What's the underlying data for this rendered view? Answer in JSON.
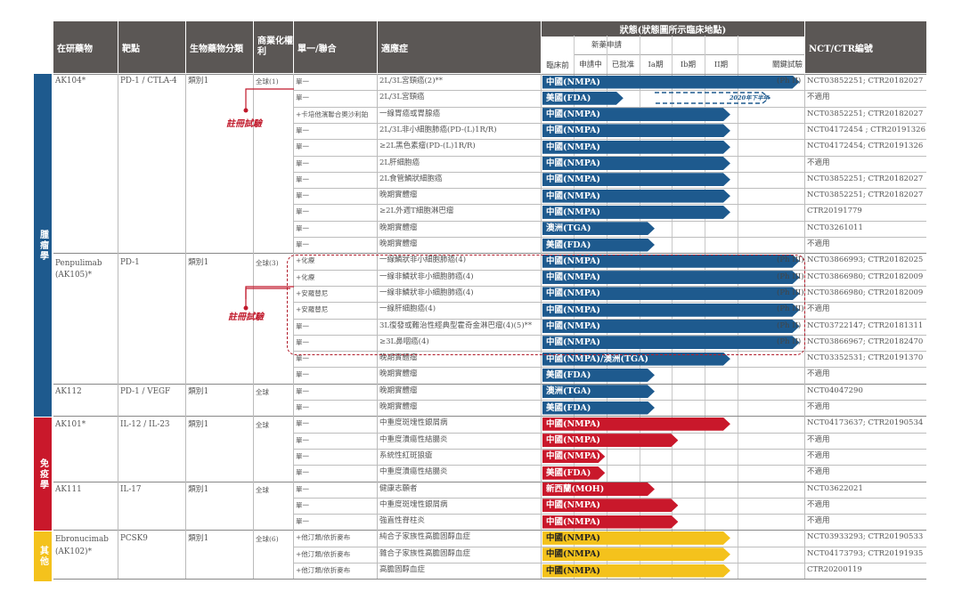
{
  "headers": {
    "drug": "在研藥物",
    "target": "靶點",
    "class": "生物藥物分類",
    "rights": "商業化權利",
    "combo": "單一/聯合",
    "indication": "適應症",
    "status": "狀態(狀態圖所示臨床地點)",
    "nct": "NCT/CTR編號",
    "preclinical": "臨床前",
    "ind": "新藥申請",
    "ind_filing": "申請中",
    "ind_approved": "已批准",
    "phase_ia": "Ia期",
    "phase_ib": "Ib期",
    "phase_ii": "II期",
    "pivotal": "關鍵試驗"
  },
  "categories": [
    {
      "label": "腫瘤學",
      "color": "#1e5a8e"
    },
    {
      "label": "免疫學",
      "color": "#c9182b"
    },
    {
      "label": "其他",
      "color": "#f4c21c"
    }
  ],
  "annotations": {
    "registration": "註冊試驗",
    "h2_2020": "2020年下半年"
  },
  "drugs": [
    {
      "name": "AK104*",
      "target": "PD-1 / CTLA-4",
      "class": "類別1",
      "rights": "全球(1)"
    },
    {
      "name": "Penpulimab (AK105)*",
      "target": "PD-1",
      "class": "類別1",
      "rights": "全球(3)"
    },
    {
      "name": "AK112",
      "target": "PD-1 / VEGF",
      "class": "類別1",
      "rights": "全球"
    },
    {
      "name": "AK101*",
      "target": "IL-12 / IL-23",
      "class": "類別1",
      "rights": "全球"
    },
    {
      "name": "AK111",
      "target": "IL-17",
      "class": "類別1",
      "rights": "全球"
    },
    {
      "name": "Ebronucimab (AK102)*",
      "target": "PCSK9",
      "class": "類別1",
      "rights": "全球(6)"
    }
  ],
  "rows": [
    {
      "combo": "單一",
      "indication": "2L/3L宮頸癌(2)**",
      "bar": "中國(NMPA)",
      "color": "blue",
      "end": 0.985,
      "phase": "(Ph II)",
      "nct": "NCT03852251; CTR20182027"
    },
    {
      "combo": "單一",
      "indication": "2L/3L宮頸癌",
      "bar": "美國(FDA)",
      "color": "blue",
      "end": 0.31,
      "phase": "",
      "nct": "不適用"
    },
    {
      "combo": "+卡培他濱聯合奧沙利鉑",
      "indication": "一線胃癌或胃腺癌",
      "bar": "中國(NMPA)",
      "color": "blue",
      "end": 0.72,
      "phase": "",
      "nct": "NCT03852251; CTR20182027"
    },
    {
      "combo": "單一",
      "indication": "2L/3L非小細胞肺癌(PD-(L)1R/R)",
      "bar": "中國(NMPA)",
      "color": "blue",
      "end": 0.72,
      "phase": "",
      "nct": "NCT04172454 ; CTR20191326"
    },
    {
      "combo": "單一",
      "indication": "≥2L黑色素瘤(PD-(L)1R/R)",
      "bar": "中國(NMPA)",
      "color": "blue",
      "end": 0.72,
      "phase": "",
      "nct": "NCT04172454; CTR20191326"
    },
    {
      "combo": "單一",
      "indication": "2L肝細胞癌",
      "bar": "中國(NMPA)",
      "color": "blue",
      "end": 0.72,
      "phase": "",
      "nct": "不適用"
    },
    {
      "combo": "單一",
      "indication": "2L食管鱗狀細胞癌",
      "bar": "中國(NMPA)",
      "color": "blue",
      "end": 0.72,
      "phase": "",
      "nct": "NCT03852251; CTR20182027"
    },
    {
      "combo": "單一",
      "indication": "晚期實體瘤",
      "bar": "中國(NMPA)",
      "color": "blue",
      "end": 0.72,
      "phase": "",
      "nct": "NCT03852251; CTR20182027"
    },
    {
      "combo": "單一",
      "indication": "≥2L外週T細胞淋巴瘤",
      "bar": "中國(NMPA)",
      "color": "blue",
      "end": 0.72,
      "phase": "",
      "nct": "CTR20191779"
    },
    {
      "combo": "單一",
      "indication": "晚期實體瘤",
      "bar": "澳洲(TGA)",
      "color": "blue",
      "end": 0.43,
      "phase": "",
      "nct": "NCT03261011"
    },
    {
      "combo": "單一",
      "indication": "晚期實體瘤",
      "bar": "美國(FDA)",
      "color": "blue",
      "end": 0.43,
      "phase": "",
      "nct": "不適用"
    },
    {
      "combo": "+化療",
      "indication": "一線鱗狀非小細胞肺癌(4)",
      "bar": "中國(NMPA)",
      "color": "blue",
      "end": 0.985,
      "phase": "(Ph III)",
      "nct": "NCT03866993; CTR20182025"
    },
    {
      "combo": "+化療",
      "indication": "一線非鱗狀非小細胞肺癌(4)",
      "bar": "中國(NMPA)",
      "color": "blue",
      "end": 0.985,
      "phase": "(Ph III)",
      "nct": "NCT03866980; CTR20182009"
    },
    {
      "combo": "+安羅替尼",
      "indication": "一線非鱗狀非小細胞肺癌(4)",
      "bar": "中國(NMPA)",
      "color": "blue",
      "end": 0.985,
      "phase": "(Ph III)",
      "nct": "NCT03866980; CTR20182009"
    },
    {
      "combo": "+安羅替尼",
      "indication": "一線肝細胞癌(4)",
      "bar": "中國(NMPA)",
      "color": "blue",
      "end": 0.985,
      "phase": "(Ph III)",
      "nct": "不適用"
    },
    {
      "combo": "單一",
      "indication": "3L復發或難治性經典型霍奇金淋巴瘤(4)(5)**",
      "bar": "中國(NMPA)",
      "color": "blue",
      "end": 0.985,
      "phase": "(Ph II)",
      "nct": "NCT03722147; CTR20181311"
    },
    {
      "combo": "單一",
      "indication": "≥3L鼻咽癌(4)",
      "bar": "中國(NMPA)",
      "color": "blue",
      "end": 0.985,
      "phase": "(Ph II)",
      "nct": "NCT03866967; CTR20182470"
    },
    {
      "combo": "單一",
      "indication": "晚期實體瘤",
      "bar": "中國(NMPA)/澳洲(TGA)",
      "color": "blue",
      "end": 0.72,
      "phase": "",
      "nct": "NCT03352531; CTR20191370"
    },
    {
      "combo": "單一",
      "indication": "晚期實體瘤",
      "bar": "美國(FDA)",
      "color": "blue",
      "end": 0.43,
      "phase": "",
      "nct": "不適用"
    },
    {
      "combo": "單一",
      "indication": "晚期實體瘤",
      "bar": "澳洲(TGA)",
      "color": "blue",
      "end": 0.43,
      "phase": "",
      "nct": "NCT04047290"
    },
    {
      "combo": "單一",
      "indication": "晚期實體瘤",
      "bar": "美國(FDA)",
      "color": "blue",
      "end": 0.43,
      "phase": "",
      "nct": "不適用"
    },
    {
      "combo": "單一",
      "indication": "中重度斑塊性銀屑病",
      "bar": "中國(NMPA)",
      "color": "red",
      "end": 0.72,
      "phase": "",
      "nct": "NCT04173637; CTR20190534"
    },
    {
      "combo": "單一",
      "indication": "中重度潰瘍性結腸炎",
      "bar": "中國(NMPA)",
      "color": "red",
      "end": 0.52,
      "phase": "",
      "nct": "不適用"
    },
    {
      "combo": "單一",
      "indication": "系統性紅斑狼瘡",
      "bar": "中國(NMPA)",
      "color": "red",
      "end": 0.24,
      "phase": "",
      "nct": "不適用"
    },
    {
      "combo": "單一",
      "indication": "中重度潰瘍性結腸炎",
      "bar": "美國(FDA)",
      "color": "red",
      "end": 0.24,
      "phase": "",
      "nct": "不適用"
    },
    {
      "combo": "單一",
      "indication": "健康志願者",
      "bar": "新西蘭(MOH)",
      "color": "red",
      "end": 0.43,
      "phase": "",
      "nct": "NCT03622021"
    },
    {
      "combo": "單一",
      "indication": "中重度斑塊性銀屑病",
      "bar": "中國(NMPA)",
      "color": "red",
      "end": 0.52,
      "phase": "",
      "nct": "不適用"
    },
    {
      "combo": "單一",
      "indication": "強直性脊柱炎",
      "bar": "中國(NMPA)",
      "color": "red",
      "end": 0.52,
      "phase": "",
      "nct": "不適用"
    },
    {
      "combo": "+他汀類/依折麥布",
      "indication": "純合子家族性高膽固醇血症",
      "bar": "中國(NMPA)",
      "color": "yellow",
      "end": 0.72,
      "phase": "",
      "nct": "NCT03933293; CTR20190533"
    },
    {
      "combo": "+他汀類/依折麥布",
      "indication": "雜合子家族性高膽固醇血症",
      "bar": "中國(NMPA)",
      "color": "yellow",
      "end": 0.72,
      "phase": "",
      "nct": "NCT04173793; CTR20191935"
    },
    {
      "combo": "+他汀類/依折麥布",
      "indication": "高膽固醇血症",
      "bar": "中國(NMPA)",
      "color": "yellow",
      "end": 0.72,
      "phase": "",
      "nct": "CTR20200119"
    }
  ],
  "colors": {
    "blue": "#1e5a8e",
    "red": "#c9182b",
    "yellow": "#f4c21c",
    "header": "#5b5755"
  }
}
